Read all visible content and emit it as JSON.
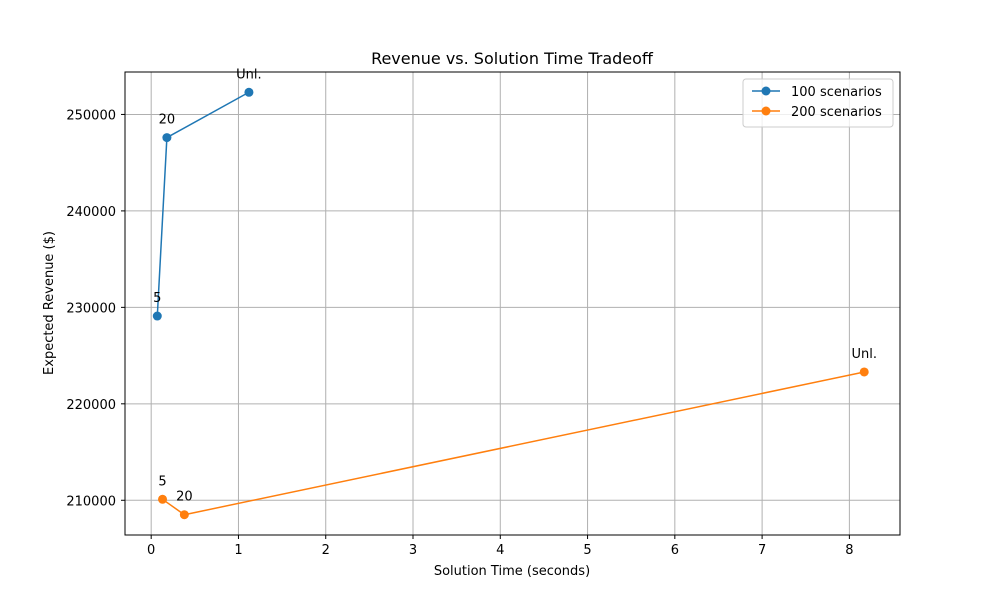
{
  "chart_data": {
    "type": "line",
    "title": "Revenue vs. Solution Time Tradeoff",
    "xlabel": "Solution Time (seconds)",
    "ylabel": "Expected Revenue ($)",
    "xlim": [
      -0.3,
      8.58
    ],
    "ylim": [
      206400,
      254400
    ],
    "xticks": [
      0,
      1,
      2,
      3,
      4,
      5,
      6,
      7,
      8
    ],
    "xtick_labels": [
      "0",
      "1",
      "2",
      "3",
      "4",
      "5",
      "6",
      "7",
      "8"
    ],
    "yticks": [
      210000,
      220000,
      230000,
      240000,
      250000
    ],
    "ytick_labels": [
      "210000",
      "220000",
      "230000",
      "240000",
      "250000"
    ],
    "grid": true,
    "legend_position": "top-right",
    "series": [
      {
        "name": "100 scenarios",
        "color": "#1f77b4",
        "marker": "circle",
        "points": [
          {
            "x": 0.07,
            "y": 229100,
            "label": "5"
          },
          {
            "x": 0.18,
            "y": 247600,
            "label": "20"
          },
          {
            "x": 1.12,
            "y": 252300,
            "label": "Unl."
          }
        ]
      },
      {
        "name": "200 scenarios",
        "color": "#ff7f0e",
        "marker": "circle",
        "points": [
          {
            "x": 0.13,
            "y": 210100,
            "label": "5"
          },
          {
            "x": 0.38,
            "y": 208500,
            "label": "20"
          },
          {
            "x": 8.17,
            "y": 223300,
            "label": "Unl."
          }
        ]
      }
    ]
  }
}
